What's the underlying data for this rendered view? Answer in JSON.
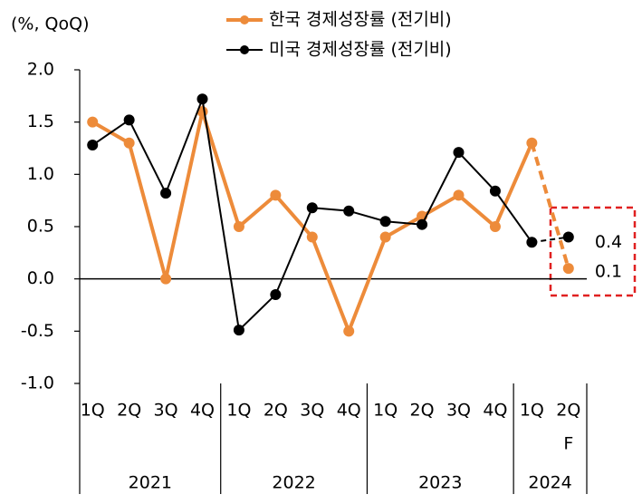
{
  "chart_data": {
    "type": "line",
    "y_unit_label": "(%, QoQ)",
    "categories": [
      "1Q",
      "2Q",
      "3Q",
      "4Q",
      "1Q",
      "2Q",
      "3Q",
      "4Q",
      "1Q",
      "2Q",
      "3Q",
      "4Q",
      "1Q",
      "2Q"
    ],
    "category_note": "F",
    "year_labels": [
      "2021",
      "2022",
      "2023",
      "2024"
    ],
    "series": [
      {
        "name": "한국 경제성장률 (전기비)",
        "color": "#ed8b3a",
        "values": [
          1.5,
          1.3,
          0.0,
          1.6,
          0.5,
          0.8,
          0.4,
          -0.5,
          0.4,
          0.6,
          0.8,
          0.5,
          1.3,
          0.1
        ],
        "value_labels": [
          null,
          null,
          null,
          null,
          null,
          null,
          null,
          null,
          null,
          null,
          null,
          null,
          null,
          "0.1"
        ]
      },
      {
        "name": "미국 경제성장률 (전기비)",
        "color": "#000000",
        "values": [
          1.28,
          1.52,
          0.82,
          1.72,
          -0.49,
          -0.15,
          0.68,
          0.65,
          0.55,
          0.52,
          1.21,
          0.84,
          0.35,
          0.4
        ],
        "value_labels": [
          null,
          null,
          null,
          null,
          null,
          null,
          null,
          null,
          null,
          null,
          null,
          null,
          null,
          "0.4"
        ]
      }
    ],
    "ylim": [
      -1.0,
      2.0
    ],
    "yticks": [
      {
        "value": 2.0,
        "label": "2.0"
      },
      {
        "value": 1.5,
        "label": "1.5"
      },
      {
        "value": 1.0,
        "label": "1.0"
      },
      {
        "value": 0.5,
        "label": "0.5"
      },
      {
        "value": 0.0,
        "label": "0.0"
      },
      {
        "value": -0.5,
        "label": "-0.5"
      },
      {
        "value": -1.0,
        "label": "-1.0"
      }
    ],
    "grid": false
  }
}
